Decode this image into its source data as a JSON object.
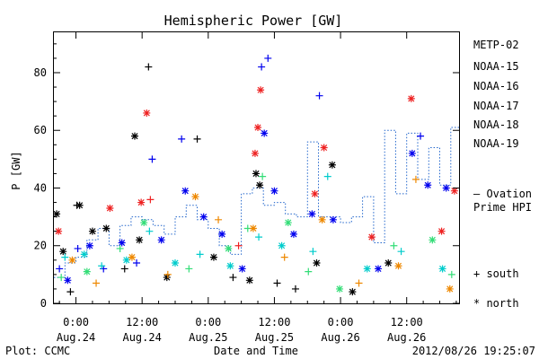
{
  "chart_data": {
    "type": "scatter",
    "title": "Hemispheric Power [GW]",
    "xlabel": "Date and Time",
    "ylabel": "P [GW]",
    "x_range": [
      "2012-08-23T20:00",
      "2012-08-26T21:30"
    ],
    "ylim": [
      0,
      94
    ],
    "yticks": [
      0,
      20,
      40,
      60,
      80
    ],
    "xticks": [
      {
        "time": "2012-08-24T00:00",
        "label": [
          "0:00",
          "Aug.24"
        ]
      },
      {
        "time": "2012-08-24T12:00",
        "label": [
          "12:00",
          "Aug.24"
        ]
      },
      {
        "time": "2012-08-25T00:00",
        "label": [
          "0:00",
          "Aug.25"
        ]
      },
      {
        "time": "2012-08-25T12:00",
        "label": [
          "12:00",
          "Aug.25"
        ]
      },
      {
        "time": "2012-08-26T00:00",
        "label": [
          "0:00",
          "Aug.26"
        ]
      },
      {
        "time": "2012-08-26T12:00",
        "label": [
          "12:00",
          "Aug.26"
        ]
      }
    ],
    "grid": false,
    "legend_placement": "right",
    "markers": {
      "south": "+",
      "north": "*"
    },
    "marker_legend": [
      {
        "symbol": "+",
        "label": "south"
      },
      {
        "symbol": "*",
        "label": "north"
      }
    ],
    "series": [
      {
        "name": "METP-02",
        "color": "#000000",
        "points": [
          {
            "t": "2012-08-23T20:30",
            "y": 31,
            "m": "*"
          },
          {
            "t": "2012-08-23T21:40",
            "y": 18,
            "m": "*"
          },
          {
            "t": "2012-08-23T23:00",
            "y": 4,
            "m": "+"
          },
          {
            "t": "2012-08-24T00:10",
            "y": 34,
            "m": "+"
          },
          {
            "t": "2012-08-24T00:40",
            "y": 34,
            "m": "*"
          },
          {
            "t": "2012-08-24T03:00",
            "y": 25,
            "m": "*"
          },
          {
            "t": "2012-08-24T05:30",
            "y": 26,
            "m": "*"
          },
          {
            "t": "2012-08-24T08:50",
            "y": 12,
            "m": "+"
          },
          {
            "t": "2012-08-24T10:40",
            "y": 58,
            "m": "*"
          },
          {
            "t": "2012-08-24T11:30",
            "y": 22,
            "m": "*"
          },
          {
            "t": "2012-08-24T13:10",
            "y": 82,
            "m": "+"
          },
          {
            "t": "2012-08-24T16:30",
            "y": 9,
            "m": "*"
          },
          {
            "t": "2012-08-24T22:00",
            "y": 57,
            "m": "+"
          },
          {
            "t": "2012-08-25T01:00",
            "y": 16,
            "m": "*"
          },
          {
            "t": "2012-08-25T04:30",
            "y": 9,
            "m": "+"
          },
          {
            "t": "2012-08-25T07:30",
            "y": 8,
            "m": "*"
          },
          {
            "t": "2012-08-25T08:40",
            "y": 45,
            "m": "*"
          },
          {
            "t": "2012-08-25T09:20",
            "y": 41,
            "m": "*"
          },
          {
            "t": "2012-08-25T12:30",
            "y": 7,
            "m": "+"
          },
          {
            "t": "2012-08-25T15:50",
            "y": 5,
            "m": "+"
          },
          {
            "t": "2012-08-25T19:40",
            "y": 14,
            "m": "*"
          },
          {
            "t": "2012-08-25T22:30",
            "y": 48,
            "m": "*"
          },
          {
            "t": "2012-08-26T02:10",
            "y": 4,
            "m": "*"
          },
          {
            "t": "2012-08-26T08:40",
            "y": 14,
            "m": "*"
          }
        ]
      },
      {
        "name": "NOAA-15",
        "color": "#0000ee",
        "points": [
          {
            "t": "2012-08-23T21:00",
            "y": 12,
            "m": "+"
          },
          {
            "t": "2012-08-23T22:30",
            "y": 8,
            "m": "*"
          },
          {
            "t": "2012-08-24T00:20",
            "y": 19,
            "m": "+"
          },
          {
            "t": "2012-08-24T02:30",
            "y": 20,
            "m": "*"
          },
          {
            "t": "2012-08-24T05:00",
            "y": 12,
            "m": "+"
          },
          {
            "t": "2012-08-24T08:20",
            "y": 21,
            "m": "*"
          },
          {
            "t": "2012-08-24T11:00",
            "y": 14,
            "m": "+"
          },
          {
            "t": "2012-08-24T13:50",
            "y": 50,
            "m": "+"
          },
          {
            "t": "2012-08-24T15:30",
            "y": 22,
            "m": "*"
          },
          {
            "t": "2012-08-24T19:10",
            "y": 57,
            "m": "+"
          },
          {
            "t": "2012-08-24T19:50",
            "y": 39,
            "m": "*"
          },
          {
            "t": "2012-08-24T23:10",
            "y": 30,
            "m": "*"
          },
          {
            "t": "2012-08-25T02:30",
            "y": 24,
            "m": "*"
          },
          {
            "t": "2012-08-25T06:10",
            "y": 12,
            "m": "*"
          },
          {
            "t": "2012-08-25T09:40",
            "y": 82,
            "m": "+"
          },
          {
            "t": "2012-08-25T10:10",
            "y": 59,
            "m": "*"
          },
          {
            "t": "2012-08-25T10:50",
            "y": 85,
            "m": "+"
          },
          {
            "t": "2012-08-25T12:00",
            "y": 39,
            "m": "*"
          },
          {
            "t": "2012-08-25T15:30",
            "y": 24,
            "m": "*"
          },
          {
            "t": "2012-08-25T18:50",
            "y": 31,
            "m": "*"
          },
          {
            "t": "2012-08-25T20:10",
            "y": 72,
            "m": "+"
          },
          {
            "t": "2012-08-25T22:40",
            "y": 29,
            "m": "*"
          },
          {
            "t": "2012-08-26T06:50",
            "y": 12,
            "m": "*"
          },
          {
            "t": "2012-08-26T13:00",
            "y": 52,
            "m": "*"
          },
          {
            "t": "2012-08-26T14:30",
            "y": 58,
            "m": "+"
          },
          {
            "t": "2012-08-26T15:50",
            "y": 41,
            "m": "*"
          },
          {
            "t": "2012-08-26T19:10",
            "y": 40,
            "m": "*"
          }
        ]
      },
      {
        "name": "NOAA-16",
        "color": "#00cccc",
        "points": [
          {
            "t": "2012-08-23T22:00",
            "y": 16,
            "m": "+"
          },
          {
            "t": "2012-08-24T01:30",
            "y": 17,
            "m": "*"
          },
          {
            "t": "2012-08-24T04:40",
            "y": 13,
            "m": "+"
          },
          {
            "t": "2012-08-24T09:10",
            "y": 15,
            "m": "*"
          },
          {
            "t": "2012-08-24T13:20",
            "y": 25,
            "m": "+"
          },
          {
            "t": "2012-08-24T18:00",
            "y": 14,
            "m": "*"
          },
          {
            "t": "2012-08-24T22:30",
            "y": 17,
            "m": "+"
          },
          {
            "t": "2012-08-25T04:00",
            "y": 13,
            "m": "*"
          },
          {
            "t": "2012-08-25T09:10",
            "y": 23,
            "m": "+"
          },
          {
            "t": "2012-08-25T13:20",
            "y": 20,
            "m": "*"
          },
          {
            "t": "2012-08-25T19:00",
            "y": 18,
            "m": "+"
          },
          {
            "t": "2012-08-25T21:40",
            "y": 44,
            "m": "+"
          },
          {
            "t": "2012-08-26T04:50",
            "y": 12,
            "m": "*"
          },
          {
            "t": "2012-08-26T11:00",
            "y": 18,
            "m": "+"
          },
          {
            "t": "2012-08-26T18:30",
            "y": 12,
            "m": "*"
          }
        ]
      },
      {
        "name": "NOAA-17",
        "color": "#33dd77",
        "points": [
          {
            "t": "2012-08-23T21:20",
            "y": 9,
            "m": "+"
          },
          {
            "t": "2012-08-24T02:00",
            "y": 11,
            "m": "*"
          },
          {
            "t": "2012-08-24T08:00",
            "y": 19,
            "m": "+"
          },
          {
            "t": "2012-08-24T12:20",
            "y": 28,
            "m": "*"
          },
          {
            "t": "2012-08-24T20:30",
            "y": 12,
            "m": "+"
          },
          {
            "t": "2012-08-25T03:40",
            "y": 19,
            "m": "*"
          },
          {
            "t": "2012-08-25T07:10",
            "y": 26,
            "m": "+"
          },
          {
            "t": "2012-08-25T09:50",
            "y": 44,
            "m": "+"
          },
          {
            "t": "2012-08-25T14:30",
            "y": 28,
            "m": "*"
          },
          {
            "t": "2012-08-25T18:10",
            "y": 11,
            "m": "+"
          },
          {
            "t": "2012-08-25T23:50",
            "y": 5,
            "m": "*"
          },
          {
            "t": "2012-08-26T09:40",
            "y": 20,
            "m": "+"
          },
          {
            "t": "2012-08-26T16:40",
            "y": 22,
            "m": "*"
          },
          {
            "t": "2012-08-26T20:10",
            "y": 10,
            "m": "+"
          }
        ]
      },
      {
        "name": "NOAA-18",
        "color": "#ee8800",
        "points": [
          {
            "t": "2012-08-23T23:20",
            "y": 15,
            "m": "*"
          },
          {
            "t": "2012-08-24T03:40",
            "y": 7,
            "m": "+"
          },
          {
            "t": "2012-08-24T10:10",
            "y": 16,
            "m": "*"
          },
          {
            "t": "2012-08-24T16:40",
            "y": 10,
            "m": "+"
          },
          {
            "t": "2012-08-24T21:40",
            "y": 37,
            "m": "*"
          },
          {
            "t": "2012-08-25T01:50",
            "y": 29,
            "m": "+"
          },
          {
            "t": "2012-08-25T08:10",
            "y": 26,
            "m": "*"
          },
          {
            "t": "2012-08-25T13:50",
            "y": 16,
            "m": "+"
          },
          {
            "t": "2012-08-25T20:40",
            "y": 29,
            "m": "*"
          },
          {
            "t": "2012-08-26T03:20",
            "y": 7,
            "m": "+"
          },
          {
            "t": "2012-08-26T10:30",
            "y": 13,
            "m": "*"
          },
          {
            "t": "2012-08-26T13:40",
            "y": 43,
            "m": "+"
          },
          {
            "t": "2012-08-26T19:50",
            "y": 5,
            "m": "*"
          }
        ]
      },
      {
        "name": "NOAA-19",
        "color": "#ee2222",
        "points": [
          {
            "t": "2012-08-23T20:50",
            "y": 25,
            "m": "*"
          },
          {
            "t": "2012-08-24T06:10",
            "y": 33,
            "m": "*"
          },
          {
            "t": "2012-08-24T11:50",
            "y": 35,
            "m": "*"
          },
          {
            "t": "2012-08-24T12:50",
            "y": 66,
            "m": "*"
          },
          {
            "t": "2012-08-24T13:30",
            "y": 36,
            "m": "+"
          },
          {
            "t": "2012-08-25T05:30",
            "y": 20,
            "m": "+"
          },
          {
            "t": "2012-08-25T08:30",
            "y": 52,
            "m": "*"
          },
          {
            "t": "2012-08-25T09:00",
            "y": 61,
            "m": "*"
          },
          {
            "t": "2012-08-25T09:30",
            "y": 74,
            "m": "*"
          },
          {
            "t": "2012-08-25T19:20",
            "y": 38,
            "m": "*"
          },
          {
            "t": "2012-08-25T21:00",
            "y": 54,
            "m": "*"
          },
          {
            "t": "2012-08-26T05:40",
            "y": 23,
            "m": "*"
          },
          {
            "t": "2012-08-26T12:50",
            "y": 71,
            "m": "*"
          },
          {
            "t": "2012-08-26T18:20",
            "y": 25,
            "m": "*"
          },
          {
            "t": "2012-08-26T20:40",
            "y": 39,
            "m": "*"
          }
        ]
      }
    ],
    "ovation": {
      "name": "Ovation Prime HPI",
      "color": "#2266cc",
      "steps": [
        {
          "t": "2012-08-23T20:00",
          "y": 9
        },
        {
          "t": "2012-08-23T22:00",
          "y": 14
        },
        {
          "t": "2012-08-24T00:00",
          "y": 16
        },
        {
          "t": "2012-08-24T02:00",
          "y": 22
        },
        {
          "t": "2012-08-24T04:00",
          "y": 26
        },
        {
          "t": "2012-08-24T06:00",
          "y": 20
        },
        {
          "t": "2012-08-24T08:00",
          "y": 27
        },
        {
          "t": "2012-08-24T10:00",
          "y": 30
        },
        {
          "t": "2012-08-24T12:00",
          "y": 29
        },
        {
          "t": "2012-08-24T14:00",
          "y": 27
        },
        {
          "t": "2012-08-24T16:00",
          "y": 24
        },
        {
          "t": "2012-08-24T18:00",
          "y": 30
        },
        {
          "t": "2012-08-24T20:00",
          "y": 34
        },
        {
          "t": "2012-08-24T22:00",
          "y": 29
        },
        {
          "t": "2012-08-25T00:00",
          "y": 26
        },
        {
          "t": "2012-08-25T02:00",
          "y": 20
        },
        {
          "t": "2012-08-25T04:00",
          "y": 17
        },
        {
          "t": "2012-08-25T06:00",
          "y": 38
        },
        {
          "t": "2012-08-25T08:00",
          "y": 40
        },
        {
          "t": "2012-08-25T10:00",
          "y": 34
        },
        {
          "t": "2012-08-25T12:00",
          "y": 35
        },
        {
          "t": "2012-08-25T14:00",
          "y": 31
        },
        {
          "t": "2012-08-25T16:00",
          "y": 30
        },
        {
          "t": "2012-08-25T18:00",
          "y": 56
        },
        {
          "t": "2012-08-25T20:00",
          "y": 30
        },
        {
          "t": "2012-08-25T22:00",
          "y": 30
        },
        {
          "t": "2012-08-26T00:00",
          "y": 28
        },
        {
          "t": "2012-08-26T02:00",
          "y": 30
        },
        {
          "t": "2012-08-26T04:00",
          "y": 37
        },
        {
          "t": "2012-08-26T06:00",
          "y": 21
        },
        {
          "t": "2012-08-26T08:00",
          "y": 60
        },
        {
          "t": "2012-08-26T10:00",
          "y": 38
        },
        {
          "t": "2012-08-26T12:00",
          "y": 59
        },
        {
          "t": "2012-08-26T14:00",
          "y": 43
        },
        {
          "t": "2012-08-26T16:00",
          "y": 54
        },
        {
          "t": "2012-08-26T18:00",
          "y": 41
        },
        {
          "t": "2012-08-26T20:00",
          "y": 61
        }
      ]
    }
  },
  "legend": {
    "items": [
      "METP-02",
      "NOAA-15",
      "NOAA-16",
      "NOAA-17",
      "NOAA-18",
      "NOAA-19"
    ],
    "ovation_line1": "— Ovation",
    "ovation_line2": "Prime HPI",
    "south_label": "+ south",
    "north_label": "* north"
  },
  "footer": {
    "plot_credit": "Plot: CCMC",
    "timestamp": "2012/08/26 19:25:07"
  }
}
